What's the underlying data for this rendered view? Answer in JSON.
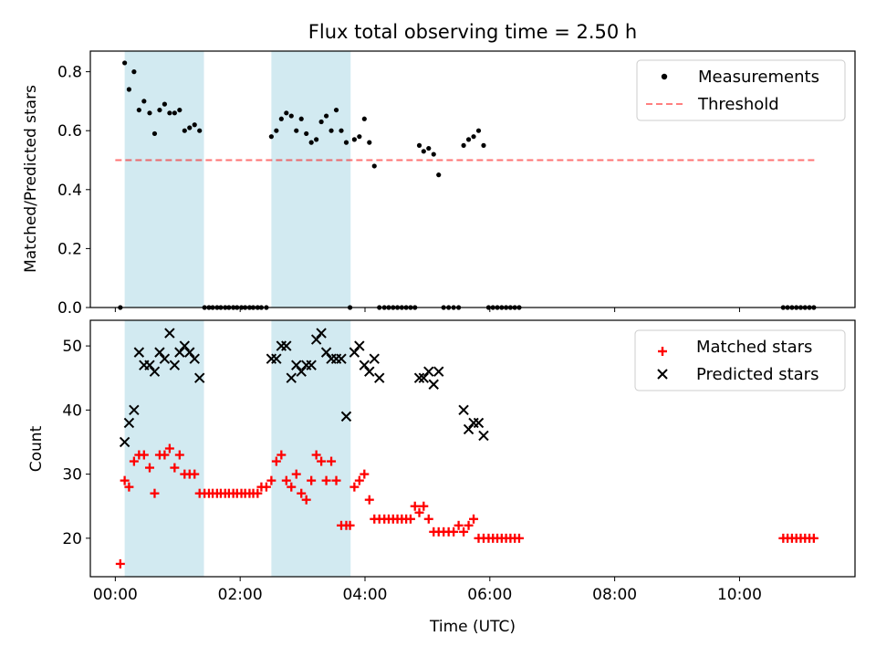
{
  "colors": {
    "band": "#add8e6",
    "threshold": "#ff0000",
    "measurement": "#000000",
    "matched": "#ff0000",
    "predicted": "#000000",
    "axis": "#000000"
  },
  "chart_data": [
    {
      "type": "scatter",
      "title": "Flux total observing time = 2.50 h",
      "ylabel": "Matched/Predicted stars",
      "xlabel": "",
      "xlim": [
        -0.4,
        11.85
      ],
      "ylim": [
        0.0,
        0.87
      ],
      "yticks": [
        0.0,
        0.2,
        0.4,
        0.6,
        0.8
      ],
      "ytick_labels": [
        "0.0",
        "0.2",
        "0.4",
        "0.6",
        "0.8"
      ],
      "xticks": [
        0,
        2,
        4,
        6,
        8,
        10
      ],
      "legend": [
        "Measurements",
        "Threshold"
      ],
      "legend_loc": "upper right",
      "bands": [
        [
          0.15,
          1.42
        ],
        [
          2.5,
          3.77
        ]
      ],
      "threshold": {
        "y": 0.5,
        "x_range": [
          0.0,
          11.2
        ],
        "label": "Threshold"
      },
      "series": [
        {
          "name": "Measurements",
          "marker": "dot",
          "x": [
            0.08,
            0.15,
            0.22,
            0.3,
            0.38,
            0.46,
            0.55,
            0.63,
            0.71,
            0.79,
            0.87,
            0.95,
            1.03,
            1.11,
            1.19,
            1.27,
            1.35,
            1.43,
            1.5,
            1.56,
            1.63,
            1.69,
            1.76,
            1.82,
            1.89,
            1.95,
            2.02,
            2.08,
            2.15,
            2.21,
            2.28,
            2.34,
            2.42,
            2.5,
            2.58,
            2.66,
            2.74,
            2.82,
            2.9,
            2.98,
            3.06,
            3.14,
            3.22,
            3.3,
            3.38,
            3.46,
            3.54,
            3.62,
            3.7,
            3.76,
            3.83,
            3.91,
            3.99,
            4.07,
            4.15,
            4.23,
            4.31,
            4.38,
            4.45,
            4.52,
            4.59,
            4.66,
            4.73,
            4.8,
            4.87,
            4.94,
            5.02,
            5.1,
            5.18,
            5.26,
            5.34,
            5.42,
            5.5,
            5.58,
            5.66,
            5.74,
            5.82,
            5.9,
            5.98,
            6.05,
            6.12,
            6.19,
            6.26,
            6.33,
            6.4,
            6.47,
            10.7,
            10.77,
            10.84,
            10.91,
            10.98,
            11.05,
            11.12,
            11.19
          ],
          "y": [
            0.0,
            0.83,
            0.74,
            0.8,
            0.67,
            0.7,
            0.66,
            0.59,
            0.67,
            0.69,
            0.66,
            0.66,
            0.67,
            0.6,
            0.61,
            0.62,
            0.6,
            0.0,
            0.0,
            0.0,
            0.0,
            0.0,
            0.0,
            0.0,
            0.0,
            0.0,
            0.0,
            0.0,
            0.0,
            0.0,
            0.0,
            0.0,
            0.0,
            0.58,
            0.6,
            0.64,
            0.66,
            0.65,
            0.6,
            0.64,
            0.59,
            0.56,
            0.57,
            0.63,
            0.65,
            0.6,
            0.67,
            0.6,
            0.56,
            0.0,
            0.57,
            0.58,
            0.64,
            0.56,
            0.48,
            0.0,
            0.0,
            0.0,
            0.0,
            0.0,
            0.0,
            0.0,
            0.0,
            0.0,
            0.55,
            0.53,
            0.54,
            0.52,
            0.45,
            0.0,
            0.0,
            0.0,
            0.0,
            0.55,
            0.57,
            0.58,
            0.6,
            0.55,
            0.0,
            0.0,
            0.0,
            0.0,
            0.0,
            0.0,
            0.0,
            0.0,
            0.0,
            0.0,
            0.0,
            0.0,
            0.0,
            0.0,
            0.0,
            0.0
          ]
        }
      ]
    },
    {
      "type": "scatter",
      "title": "",
      "ylabel": "Count",
      "xlabel": "Time (UTC)",
      "xlim": [
        -0.4,
        11.85
      ],
      "ylim": [
        14,
        54
      ],
      "yticks": [
        20,
        30,
        40,
        50
      ],
      "ytick_labels": [
        "20",
        "30",
        "40",
        "50"
      ],
      "xticks": [
        0,
        2,
        4,
        6,
        8,
        10
      ],
      "xtick_labels": [
        "00:00",
        "02:00",
        "04:00",
        "06:00",
        "08:00",
        "10:00"
      ],
      "legend": [
        "Matched stars",
        "Predicted stars"
      ],
      "legend_loc": "upper right",
      "bands": [
        [
          0.15,
          1.42
        ],
        [
          2.5,
          3.77
        ]
      ],
      "series": [
        {
          "name": "Matched stars",
          "marker": "plus",
          "x": [
            0.08,
            0.15,
            0.22,
            0.3,
            0.38,
            0.46,
            0.55,
            0.63,
            0.71,
            0.79,
            0.87,
            0.95,
            1.03,
            1.11,
            1.19,
            1.27,
            1.35,
            1.43,
            1.5,
            1.56,
            1.63,
            1.69,
            1.76,
            1.82,
            1.89,
            1.95,
            2.02,
            2.08,
            2.15,
            2.21,
            2.28,
            2.34,
            2.42,
            2.5,
            2.58,
            2.66,
            2.74,
            2.82,
            2.9,
            2.98,
            3.06,
            3.14,
            3.22,
            3.3,
            3.38,
            3.46,
            3.54,
            3.62,
            3.7,
            3.76,
            3.83,
            3.91,
            3.99,
            4.07,
            4.15,
            4.23,
            4.31,
            4.38,
            4.45,
            4.52,
            4.59,
            4.66,
            4.73,
            4.8,
            4.87,
            4.94,
            5.02,
            5.1,
            5.18,
            5.26,
            5.34,
            5.42,
            5.5,
            5.58,
            5.66,
            5.74,
            5.82,
            5.9,
            5.98,
            6.05,
            6.12,
            6.19,
            6.26,
            6.33,
            6.4,
            6.47,
            10.7,
            10.77,
            10.84,
            10.91,
            10.98,
            11.05,
            11.12,
            11.19
          ],
          "y": [
            16,
            29,
            28,
            32,
            33,
            33,
            31,
            27,
            33,
            33,
            34,
            31,
            33,
            30,
            30,
            30,
            27,
            27,
            27,
            27,
            27,
            27,
            27,
            27,
            27,
            27,
            27,
            27,
            27,
            27,
            27,
            28,
            28,
            29,
            32,
            33,
            29,
            28,
            30,
            27,
            26,
            29,
            33,
            32,
            29,
            32,
            29,
            22,
            22,
            22,
            28,
            29,
            30,
            26,
            23,
            23,
            23,
            23,
            23,
            23,
            23,
            23,
            23,
            25,
            24,
            25,
            23,
            21,
            21,
            21,
            21,
            21,
            22,
            21,
            22,
            23,
            20,
            20,
            20,
            20,
            20,
            20,
            20,
            20,
            20,
            20,
            20,
            20,
            20,
            20,
            20,
            20,
            20,
            20
          ]
        },
        {
          "name": "Predicted stars",
          "marker": "x",
          "x": [
            0.15,
            0.22,
            0.3,
            0.38,
            0.46,
            0.55,
            0.63,
            0.71,
            0.79,
            0.87,
            0.95,
            1.03,
            1.11,
            1.19,
            1.27,
            1.35,
            2.5,
            2.58,
            2.66,
            2.74,
            2.82,
            2.9,
            2.98,
            3.06,
            3.14,
            3.22,
            3.3,
            3.38,
            3.46,
            3.54,
            3.62,
            3.7,
            3.83,
            3.91,
            3.99,
            4.07,
            4.15,
            4.23,
            4.87,
            4.94,
            5.02,
            5.1,
            5.18,
            5.58,
            5.66,
            5.74,
            5.82,
            5.9
          ],
          "y": [
            35,
            38,
            40,
            49,
            47,
            47,
            46,
            49,
            48,
            52,
            47,
            49,
            50,
            49,
            48,
            45,
            48,
            48,
            50,
            50,
            45,
            47,
            46,
            47,
            47,
            51,
            52,
            49,
            48,
            48,
            48,
            39,
            49,
            50,
            47,
            46,
            48,
            45,
            45,
            45,
            46,
            44,
            46,
            40,
            37,
            38,
            38,
            36
          ]
        }
      ]
    }
  ]
}
